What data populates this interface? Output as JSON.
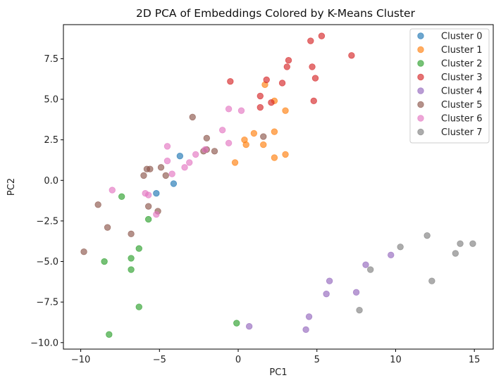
{
  "chart_data": {
    "type": "scatter",
    "title": "2D PCA of Embeddings Colored by K-Means Cluster",
    "xlabel": "PC1",
    "ylabel": "PC2",
    "xlim": [
      -11.1,
      16.2
    ],
    "ylim": [
      -10.4,
      9.6
    ],
    "x_ticks": [
      -10,
      -5,
      0,
      5,
      10,
      15
    ],
    "y_ticks": [
      -10.0,
      -7.5,
      -5.0,
      -2.5,
      0.0,
      2.5,
      5.0,
      7.5
    ],
    "x_tick_labels": [
      "−10",
      "−5",
      "0",
      "5",
      "10",
      "15"
    ],
    "y_tick_labels": [
      "−10.0",
      "−7.5",
      "−5.0",
      "−2.5",
      "0.0",
      "2.5",
      "5.0",
      "7.5"
    ],
    "grid": false,
    "legend_position": "top-right",
    "marker_alpha": 0.65,
    "series": [
      {
        "name": "Cluster 0",
        "color": "#1f77b4",
        "points": [
          [
            -5.2,
            -0.8
          ],
          [
            -4.1,
            -0.2
          ],
          [
            -3.7,
            1.5
          ]
        ]
      },
      {
        "name": "Cluster 1",
        "color": "#ff7f0e",
        "points": [
          [
            1.7,
            5.9
          ],
          [
            2.3,
            4.9
          ],
          [
            3.0,
            4.3
          ],
          [
            1.0,
            2.9
          ],
          [
            2.3,
            3.0
          ],
          [
            0.4,
            2.5
          ],
          [
            0.5,
            2.2
          ],
          [
            1.6,
            2.2
          ],
          [
            3.0,
            1.6
          ],
          [
            -0.2,
            1.1
          ],
          [
            2.3,
            1.4
          ]
        ]
      },
      {
        "name": "Cluster 2",
        "color": "#2ca02c",
        "points": [
          [
            -7.4,
            -1.0
          ],
          [
            -5.7,
            -2.4
          ],
          [
            -6.3,
            -4.2
          ],
          [
            -6.8,
            -4.8
          ],
          [
            -8.5,
            -5.0
          ],
          [
            -6.8,
            -5.5
          ],
          [
            -6.3,
            -7.8
          ],
          [
            -8.2,
            -9.5
          ],
          [
            -0.1,
            -8.8
          ]
        ]
      },
      {
        "name": "Cluster 3",
        "color": "#d62728",
        "points": [
          [
            5.3,
            8.9
          ],
          [
            4.6,
            8.6
          ],
          [
            3.2,
            7.4
          ],
          [
            7.2,
            7.7
          ],
          [
            3.1,
            7.0
          ],
          [
            4.7,
            7.0
          ],
          [
            4.9,
            6.3
          ],
          [
            1.8,
            6.2
          ],
          [
            2.8,
            6.0
          ],
          [
            -0.5,
            6.1
          ],
          [
            1.4,
            5.2
          ],
          [
            4.8,
            4.9
          ],
          [
            2.1,
            4.8
          ],
          [
            1.4,
            4.5
          ]
        ]
      },
      {
        "name": "Cluster 4",
        "color": "#9467bd",
        "points": [
          [
            9.7,
            -4.6
          ],
          [
            8.1,
            -5.2
          ],
          [
            5.8,
            -6.2
          ],
          [
            7.5,
            -6.9
          ],
          [
            5.6,
            -7.0
          ],
          [
            4.5,
            -8.4
          ],
          [
            0.7,
            -9.0
          ],
          [
            4.3,
            -9.2
          ]
        ]
      },
      {
        "name": "Cluster 5",
        "color": "#8c564b",
        "points": [
          [
            -2.9,
            3.9
          ],
          [
            -2.0,
            2.6
          ],
          [
            1.6,
            2.7
          ],
          [
            -2.2,
            1.8
          ],
          [
            -1.5,
            1.8
          ],
          [
            -2.0,
            1.9
          ],
          [
            -4.9,
            0.8
          ],
          [
            -5.6,
            0.7
          ],
          [
            -5.8,
            0.7
          ],
          [
            -6.0,
            0.3
          ],
          [
            -4.6,
            0.3
          ],
          [
            -5.7,
            -1.6
          ],
          [
            -8.9,
            -1.5
          ],
          [
            -5.1,
            -1.9
          ],
          [
            -8.3,
            -2.9
          ],
          [
            -6.8,
            -3.3
          ],
          [
            -9.8,
            -4.4
          ]
        ]
      },
      {
        "name": "Cluster 6",
        "color": "#e377c2",
        "points": [
          [
            -0.6,
            4.4
          ],
          [
            0.2,
            4.3
          ],
          [
            -1.0,
            3.1
          ],
          [
            -0.6,
            2.3
          ],
          [
            -4.5,
            2.1
          ],
          [
            -2.7,
            1.6
          ],
          [
            -2.1,
            1.9
          ],
          [
            -4.5,
            1.2
          ],
          [
            -3.1,
            1.1
          ],
          [
            -3.4,
            0.8
          ],
          [
            -4.2,
            0.4
          ],
          [
            -8.0,
            -0.6
          ],
          [
            -5.7,
            -0.9
          ],
          [
            -5.9,
            -0.8
          ],
          [
            -5.2,
            -2.1
          ]
        ]
      },
      {
        "name": "Cluster 7",
        "color": "#7f7f7f",
        "points": [
          [
            12.0,
            -3.4
          ],
          [
            14.1,
            -3.9
          ],
          [
            14.9,
            -3.9
          ],
          [
            10.3,
            -4.1
          ],
          [
            13.8,
            -4.5
          ],
          [
            8.4,
            -5.5
          ],
          [
            12.3,
            -6.2
          ],
          [
            7.7,
            -8.0
          ]
        ]
      }
    ]
  }
}
